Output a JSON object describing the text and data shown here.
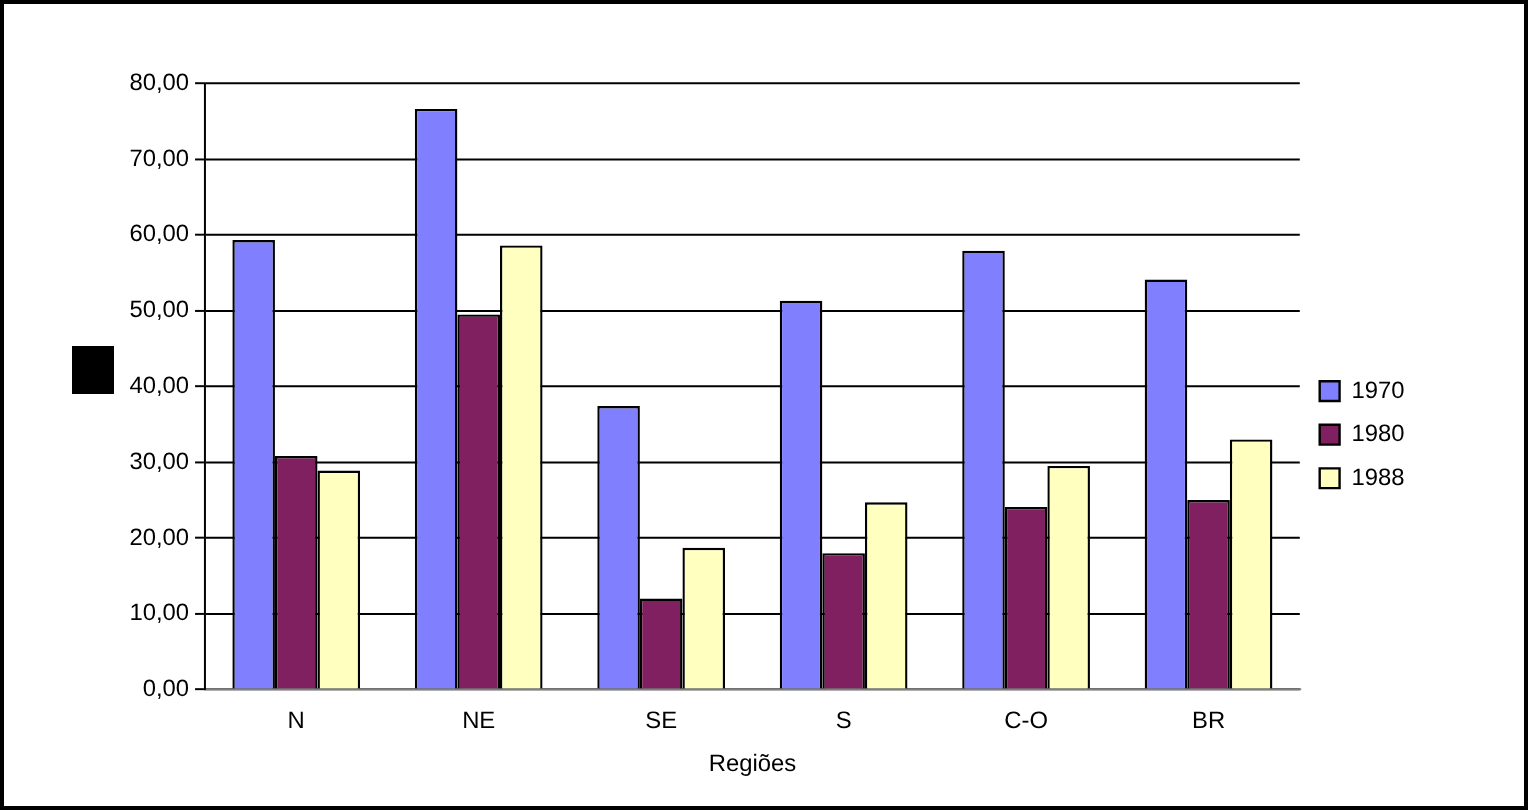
{
  "chart_data": {
    "type": "bar",
    "xlabel": "Regiões",
    "categories": [
      "N",
      "NE",
      "SE",
      "S",
      "C-O",
      "BR"
    ],
    "series": [
      {
        "name": "1970",
        "color": "#8080ff",
        "values": [
          59.3,
          76.6,
          37.4,
          51.3,
          57.9,
          54.1
        ]
      },
      {
        "name": "1980",
        "color": "#802060",
        "values": [
          30.8,
          49.5,
          12.0,
          18.0,
          24.1,
          25.0
        ]
      },
      {
        "name": "1988",
        "color": "#ffffc0",
        "values": [
          28.9,
          58.6,
          18.7,
          24.7,
          29.5,
          33.0
        ]
      }
    ],
    "ylim": [
      0,
      80
    ],
    "yticks": [
      {
        "value": 0,
        "label": "0,00"
      },
      {
        "value": 10,
        "label": "10,00"
      },
      {
        "value": 20,
        "label": "20,00"
      },
      {
        "value": 30,
        "label": "30,00"
      },
      {
        "value": 40,
        "label": "40,00"
      },
      {
        "value": 50,
        "label": "50,00"
      },
      {
        "value": 60,
        "label": "60,00"
      },
      {
        "value": 70,
        "label": "70,00"
      },
      {
        "value": 80,
        "label": "80,00"
      }
    ],
    "grid": "y",
    "legend": "right"
  }
}
